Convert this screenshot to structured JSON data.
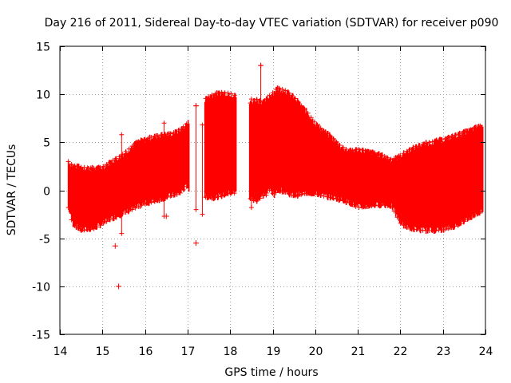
{
  "chart_data": {
    "type": "scatter",
    "title": "Day 216 of 2011, Sidereal Day-to-day VTEC variation (SDTVAR) for receiver p090",
    "xlabel": "GPS time / hours",
    "ylabel": "SDTVAR / TECUs",
    "xlim": [
      14,
      24
    ],
    "ylim": [
      -15,
      15
    ],
    "xticks": [
      "14",
      "15",
      "16",
      "17",
      "18",
      "19",
      "20",
      "21",
      "22",
      "23",
      "24"
    ],
    "yticks": [
      "15",
      "10",
      "5",
      "0",
      "-5",
      "-10",
      "-15"
    ],
    "grid": true,
    "color": "#ff0000",
    "marker": "+",
    "envelope": {
      "x": [
        14.2,
        14.3,
        14.5,
        14.8,
        15.0,
        15.2,
        15.4,
        15.6,
        15.8,
        16.0,
        16.2,
        16.4,
        16.6,
        16.8,
        17.0,
        17.05,
        17.4,
        17.6,
        17.8,
        18.0,
        18.15,
        18.45,
        18.6,
        18.8,
        18.95,
        19.05,
        19.1,
        19.3,
        19.5,
        19.8,
        20.0,
        20.2,
        20.4,
        20.6,
        20.8,
        21.0,
        21.2,
        21.4,
        21.6,
        21.8,
        22.0,
        22.2,
        22.4,
        22.6,
        22.8,
        23.0,
        23.2,
        23.4,
        23.6,
        23.8,
        23.95
      ],
      "upper": [
        3.0,
        2.6,
        2.4,
        2.3,
        2.4,
        3.0,
        3.5,
        4.2,
        5.0,
        5.3,
        5.6,
        5.8,
        5.9,
        6.2,
        7.0,
        7.2,
        9.5,
        10.0,
        10.2,
        10.1,
        9.8,
        9.0,
        9.5,
        9.2,
        10.0,
        10.3,
        10.7,
        10.4,
        9.7,
        8.2,
        7.0,
        6.2,
        5.5,
        4.6,
        4.1,
        4.3,
        4.1,
        3.9,
        3.6,
        3.2,
        3.6,
        4.2,
        4.6,
        4.9,
        5.1,
        5.3,
        5.6,
        5.9,
        6.2,
        6.6,
        6.8
      ],
      "lower": [
        -1.8,
        -3.5,
        -4.2,
        -4.0,
        -3.5,
        -3.0,
        -2.6,
        -2.2,
        -1.8,
        -1.4,
        -1.2,
        -0.9,
        -0.6,
        -0.4,
        0.5,
        -0.2,
        -0.7,
        -0.8,
        -0.6,
        -0.3,
        -0.3,
        -0.8,
        -1.2,
        -0.5,
        0.1,
        -0.7,
        0.1,
        -0.2,
        -0.6,
        -0.3,
        -0.4,
        -0.6,
        -0.8,
        -1.0,
        -1.3,
        -1.8,
        -1.7,
        -1.6,
        -1.5,
        -1.7,
        -3.4,
        -4.0,
        -4.1,
        -4.2,
        -4.2,
        -4.1,
        -3.9,
        -3.5,
        -3.0,
        -2.5,
        -2.0
      ]
    },
    "gaps": [
      [
        17.05,
        17.4
      ],
      [
        18.15,
        18.45
      ]
    ],
    "outliers": [
      {
        "x": 15.38,
        "y": -10.0
      },
      {
        "x": 17.2,
        "y": -5.5
      },
      {
        "x": 18.72,
        "y": 13.0
      },
      {
        "x": 17.2,
        "y": 8.8
      },
      {
        "x": 15.3,
        "y": -5.8
      },
      {
        "x": 16.5,
        "y": -2.7
      }
    ],
    "errorbars": [
      {
        "x": 15.45,
        "ymin": -4.5,
        "ymax": 5.8
      },
      {
        "x": 16.45,
        "ymin": -2.7,
        "ymax": 7.0
      },
      {
        "x": 17.2,
        "ymin": -2.0,
        "ymax": 8.8
      },
      {
        "x": 17.35,
        "ymin": -2.5,
        "ymax": 6.8
      },
      {
        "x": 18.5,
        "ymin": -1.8,
        "ymax": 9.5
      },
      {
        "x": 18.72,
        "ymin": 0.5,
        "ymax": 13.0
      },
      {
        "x": 18.85,
        "ymin": -0.5,
        "ymax": 8.5
      }
    ]
  }
}
